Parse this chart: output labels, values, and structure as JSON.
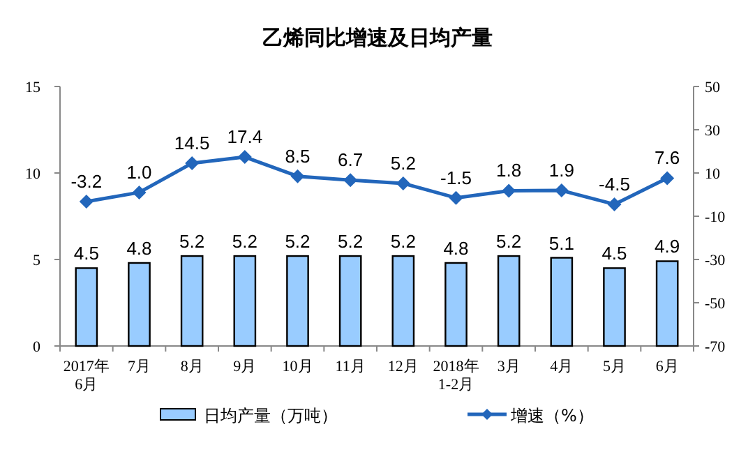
{
  "chart_data": {
    "type": "bar",
    "title": "乙烯同比增速及日均产量",
    "categories": [
      "2017年\n6月",
      "7月",
      "8月",
      "9月",
      "10月",
      "11月",
      "12月",
      "2018年\n1-2月",
      "3月",
      "4月",
      "5月",
      "6月"
    ],
    "series": [
      {
        "name": "日均产量（万吨）",
        "color": "#99ccff",
        "values": [
          4.5,
          4.8,
          5.2,
          5.2,
          5.2,
          5.2,
          5.2,
          4.8,
          5.2,
          5.1,
          4.5,
          4.9
        ]
      },
      {
        "name": "增速（%）",
        "type": "line",
        "axis": "y2",
        "color": "#2266bb",
        "marker": "diamond",
        "values": [
          -3.2,
          1.0,
          14.5,
          17.4,
          8.5,
          6.7,
          5.2,
          -1.5,
          1.8,
          1.9,
          -4.5,
          7.6
        ],
        "value_labels": [
          "-3.2",
          "1.0",
          "14.5",
          "17.4",
          "8.5",
          "6.7",
          "5.2",
          "-1.5",
          "1.8",
          "1.9",
          "-4.5",
          "7.6"
        ]
      }
    ],
    "ylim": [
      0,
      15
    ],
    "yticks": [
      0,
      5,
      10,
      15
    ],
    "y2lim": [
      -70,
      50
    ],
    "y2ticks": [
      -70,
      -50,
      -30,
      -10,
      10,
      30,
      50
    ],
    "data_labels": true,
    "legend": "bottom",
    "grid": false
  }
}
